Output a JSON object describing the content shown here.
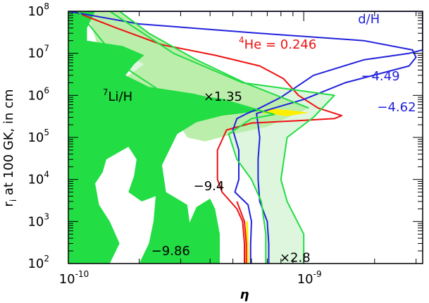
{
  "chart_data": {
    "type": "area",
    "xlabel": "η",
    "ylabel_main": "r",
    "ylabel_sub": "i",
    "ylabel_rest": " at 100 GK, in cm",
    "xscale": "log",
    "yscale": "log",
    "xlim": [
      1e-10,
      3.2e-09
    ],
    "ylim": [
      100.0,
      100000000.0
    ],
    "x_ticks": [
      {
        "value": 1e-10,
        "base": "10",
        "exp": "-10"
      },
      {
        "value": 1e-09,
        "base": "10",
        "exp": "-9"
      }
    ],
    "y_ticks": [
      {
        "value": 100.0,
        "base": "10",
        "exp": "2"
      },
      {
        "value": 1000.0,
        "base": "10",
        "exp": "3"
      },
      {
        "value": 10000.0,
        "base": "10",
        "exp": "4"
      },
      {
        "value": 100000.0,
        "base": "10",
        "exp": "5"
      },
      {
        "value": 1000000.0,
        "base": "10",
        "exp": "6"
      },
      {
        "value": 10000000.0,
        "base": "10",
        "exp": "7"
      },
      {
        "value": 100000000.0,
        "base": "10",
        "exp": "8"
      }
    ],
    "colors": {
      "li_dark": "#22dd44",
      "li_medium": "#bbeeaa",
      "li_light": "#ddf6dd",
      "he": "#ee1111",
      "d": "#2222dd",
      "overlap": "#ffee00"
    },
    "regions": {
      "li_light_x2_8": [
        [
          1.5e-10,
          100000000.0
        ],
        [
          2.8e-10,
          10000000.0
        ],
        [
          5.5e-10,
          2000000.0
        ],
        [
          1.35e-09,
          1000000.0
        ],
        [
          1.1e-09,
          300000.0
        ],
        [
          8.5e-10,
          100000.0
        ],
        [
          8e-10,
          10000.0
        ],
        [
          8.5e-10,
          3000.0
        ],
        [
          1e-09,
          500.0
        ],
        [
          1e-09,
          100.0
        ],
        [
          6.9e-10,
          100.0
        ],
        [
          6.9e-10,
          500.0
        ],
        [
          6.6e-10,
          3000.0
        ],
        [
          6e-10,
          10000.0
        ],
        [
          5.2e-10,
          30000.0
        ],
        [
          4.8e-10,
          120000.0
        ],
        [
          6e-10,
          280000.0
        ],
        [
          7.5e-10,
          350000.0
        ],
        [
          4.5e-10,
          800000.0
        ],
        [
          2.5e-10,
          1200000.0
        ],
        [
          1.7e-10,
          5000000.0
        ],
        [
          1.1e-10,
          100000000.0
        ]
      ],
      "li_medium_x1_35": [
        [
          1.2e-10,
          100000000.0
        ],
        [
          1.65e-10,
          100000000.0
        ],
        [
          2.2e-10,
          30000000.0
        ],
        [
          3.5e-10,
          7000000.0
        ],
        [
          5.6e-10,
          2000000.0
        ],
        [
          1.05e-09,
          500000.0
        ],
        [
          7e-10,
          180000.0
        ],
        [
          5e-10,
          120000.0
        ],
        [
          3.8e-10,
          80000.0
        ],
        [
          3.2e-10,
          100000.0
        ],
        [
          3e-10,
          180000.0
        ],
        [
          2.2e-10,
          300000.0
        ],
        [
          1.75e-10,
          1000000.0
        ],
        [
          1.8e-10,
          3000000.0
        ],
        [
          2.1e-10,
          5500000.0
        ],
        [
          1.8e-10,
          9000000.0
        ],
        [
          1.35e-10,
          12000000.0
        ]
      ],
      "li_dark_main": [
        [
          1e-10,
          100000000.0
        ],
        [
          1.3e-10,
          100000000.0
        ],
        [
          1.2e-10,
          40000000.0
        ],
        [
          1.2e-10,
          20000000.0
        ],
        [
          1.7e-10,
          15000000.0
        ],
        [
          2.1e-10,
          9000000.0
        ],
        [
          1.9e-10,
          5500000.0
        ],
        [
          1.75e-10,
          3000000.0
        ],
        [
          2.2e-10,
          1600000.0
        ],
        [
          3.4e-10,
          1100000.0
        ],
        [
          4.8e-10,
          700000.0
        ],
        [
          6.5e-10,
          420000.0
        ],
        [
          4.5e-10,
          330000.0
        ],
        [
          3.5e-10,
          230000.0
        ],
        [
          2.9e-10,
          120000.0
        ],
        [
          2.5e-10,
          22000.0
        ],
        [
          2.6e-10,
          5000.0
        ],
        [
          3.2e-10,
          2500.0
        ],
        [
          3.3e-10,
          700.0
        ],
        [
          3.6e-10,
          300.0
        ],
        [
          3.7e-10,
          100.0
        ],
        [
          1e-10,
          100.0
        ]
      ],
      "li_dark_bottom_right": [
        [
          2.9e-10,
          100.0
        ],
        [
          4.4e-10,
          100.0
        ],
        [
          4.4e-10,
          500.0
        ],
        [
          4.2e-10,
          2000.0
        ],
        [
          4e-10,
          3500.0
        ],
        [
          3.5e-10,
          2200.0
        ],
        [
          3.2e-10,
          700.0
        ],
        [
          3e-10,
          300.0
        ]
      ],
      "white_hole": [
        [
          1.5e-10,
          100.0
        ],
        [
          1.65e-10,
          300.0
        ],
        [
          1.5e-10,
          1000.0
        ],
        [
          1.35e-10,
          2500.0
        ],
        [
          1.3e-10,
          8000.0
        ],
        [
          1.4e-10,
          15000.0
        ],
        [
          1.45e-10,
          30000.0
        ],
        [
          1.8e-10,
          60000.0
        ],
        [
          1.95e-10,
          30000.0
        ],
        [
          1.9e-10,
          12000.0
        ],
        [
          1.8e-10,
          5000.0
        ],
        [
          2.05e-10,
          3000.0
        ],
        [
          2.35e-10,
          4000.0
        ],
        [
          2.3e-10,
          1000.0
        ],
        [
          2.2e-10,
          300.0
        ],
        [
          2e-10,
          100.0
        ]
      ],
      "yellow_overlap_top": [
        [
          6.3e-10,
          400000.0
        ],
        [
          7.2e-10,
          480000.0
        ],
        [
          8.5e-10,
          450000.0
        ],
        [
          1.05e-09,
          390000.0
        ],
        [
          8.5e-10,
          320000.0
        ]
      ],
      "yellow_overlap_bottom": [
        [
          5.65e-10,
          100.0
        ],
        [
          5.85e-10,
          100.0
        ],
        [
          5.8e-10,
          1000.0
        ],
        [
          5.7e-10,
          1000.0
        ]
      ]
    },
    "series": [
      {
        "key": "he_left",
        "color": "#ee1111",
        "points": [
          [
            1.05e-10,
            100000000.0
          ],
          [
            1.6e-10,
            40000000.0
          ],
          [
            2.5e-10,
            16000000.0
          ],
          [
            4.2e-10,
            9000000.0
          ],
          [
            6.5e-10,
            5000000.0
          ],
          [
            8.2e-10,
            2500000.0
          ],
          [
            9.5e-10,
            1000000.0
          ],
          [
            1.15e-09,
            500000.0
          ],
          [
            1.45e-09,
            330000.0
          ],
          [
            1.35e-09,
            280000.0
          ],
          [
            9.5e-10,
            250000.0
          ],
          [
            6e-10,
            220000.0
          ],
          [
            4.7e-10,
            150000.0
          ],
          [
            4.3e-10,
            50000.0
          ],
          [
            4.3e-10,
            10000.0
          ],
          [
            4.5e-10,
            5000.0
          ],
          [
            5.2e-10,
            2000.0
          ],
          [
            5.5e-10,
            1000.0
          ],
          [
            5.6e-10,
            300.0
          ],
          [
            5.6e-10,
            100.0
          ]
        ]
      },
      {
        "key": "he_right",
        "color": "#ee1111",
        "points": [
          [
            5.7e-10,
            100.0
          ],
          [
            5.7e-10,
            300.0
          ],
          [
            5.6e-10,
            1000.0
          ],
          [
            5.2e-10,
            3000.0
          ]
        ]
      },
      {
        "key": "d_outer",
        "color": "#2222dd",
        "points": [
          [
            1.2e-10,
            100000000.0
          ],
          [
            3.2e-09,
            100000000.0
          ],
          [
            3.2e-09,
            12000000.0
          ],
          [
            2.8e-09,
            10000000.0
          ],
          [
            1.8e-09,
            7000000.0
          ],
          [
            1.1e-09,
            3000000.0
          ],
          [
            8e-10,
            900000.0
          ],
          [
            6.5e-10,
            500000.0
          ],
          [
            5.8e-10,
            380000.0
          ],
          [
            5.2e-10,
            280000.0
          ],
          [
            5e-10,
            150000.0
          ],
          [
            5.3e-10,
            50000.0
          ],
          [
            5.3e-10,
            10000.0
          ],
          [
            5.1e-10,
            5000.0
          ],
          [
            5.8e-10,
            2500.0
          ],
          [
            6e-10,
            1000.0
          ],
          [
            5.95e-10,
            300.0
          ],
          [
            5.95e-10,
            100.0
          ]
        ]
      },
      {
        "key": "d_inner",
        "color": "#2222dd",
        "points": [
          [
            1e-10,
            100000000.0
          ],
          [
            2e-10,
            50000000.0
          ],
          [
            6.5e-10,
            30000000.0
          ],
          [
            1.8e-09,
            20000000.0
          ],
          [
            2.9e-09,
            12000000.0
          ],
          [
            3e-09,
            8000000.0
          ],
          [
            2.8e-09,
            5000000.0
          ],
          [
            1.5e-09,
            2000000.0
          ],
          [
            1e-09,
            800000.0
          ],
          [
            7.5e-10,
            500000.0
          ],
          [
            6.3e-10,
            370000.0
          ],
          [
            6.4e-10,
            200000.0
          ],
          [
            6.5e-10,
            100000.0
          ],
          [
            6.4e-10,
            30000.0
          ],
          [
            6.4e-10,
            10000.0
          ],
          [
            6.5e-10,
            3000.0
          ],
          [
            7e-10,
            1000.0
          ],
          [
            7.1e-10,
            300.0
          ],
          [
            7.1e-10,
            100.0
          ]
        ]
      },
      {
        "key": "li_edge_outer",
        "color": "#22dd44",
        "points": [
          [
            1.5e-10,
            100000000.0
          ],
          [
            2.8e-10,
            10000000.0
          ],
          [
            5.5e-10,
            2000000.0
          ],
          [
            1.35e-09,
            1000000.0
          ],
          [
            1.1e-09,
            300000.0
          ],
          [
            8.5e-10,
            100000.0
          ],
          [
            8e-10,
            10000.0
          ],
          [
            8.5e-10,
            3000.0
          ],
          [
            1e-09,
            500.0
          ],
          [
            1e-09,
            100.0
          ]
        ]
      },
      {
        "key": "li_edge_inner",
        "color": "#22dd44",
        "points": [
          [
            1.1e-10,
            100000000.0
          ],
          [
            1.7e-10,
            5000000.0
          ],
          [
            2.5e-10,
            1200000.0
          ],
          [
            4.5e-10,
            800000.0
          ],
          [
            7.5e-10,
            350000.0
          ],
          [
            6e-10,
            280000.0
          ],
          [
            4.8e-10,
            120000.0
          ],
          [
            5.2e-10,
            30000.0
          ],
          [
            6e-10,
            10000.0
          ],
          [
            6.6e-10,
            3000.0
          ],
          [
            6.9e-10,
            500.0
          ],
          [
            6.9e-10,
            100.0
          ]
        ]
      },
      {
        "key": "li_edge_mid",
        "color": "#22dd44",
        "points": [
          [
            1.65e-10,
            100000000.0
          ],
          [
            2.2e-10,
            30000000.0
          ],
          [
            3.5e-10,
            7000000.0
          ],
          [
            5.6e-10,
            2000000.0
          ],
          [
            1.05e-09,
            500000.0
          ]
        ]
      }
    ],
    "annotations": [
      {
        "key": "d_label",
        "text": "d/H",
        "color": "#2222dd",
        "x": 1.7e-09,
        "y": 52000000.0
      },
      {
        "key": "he_label",
        "pre": "4",
        "text": "He = 0.246",
        "color": "#ee1111",
        "x": 5.3e-10,
        "y": 13000000.0
      },
      {
        "key": "d_upper",
        "text": "−4.49",
        "color": "#2222dd",
        "x": 1.75e-09,
        "y": 2300000.0
      },
      {
        "key": "d_lower",
        "text": "−4.62",
        "color": "#2222dd",
        "x": 2.05e-09,
        "y": 420000.0
      },
      {
        "key": "li_label",
        "pre": "7",
        "text": "Li/H",
        "color": "#000000",
        "x": 1.4e-10,
        "y": 750000.0
      },
      {
        "key": "li_upper",
        "text": "×1.35",
        "color": "#000000",
        "x": 3.75e-10,
        "y": 750000.0
      },
      {
        "key": "li_mid",
        "text": "−9.4",
        "color": "#000000",
        "x": 3.4e-10,
        "y": 5500.0
      },
      {
        "key": "li_lower",
        "text": "−9.86",
        "color": "#000000",
        "x": 2.25e-10,
        "y": 160.0
      },
      {
        "key": "li_x2_8",
        "text": "×2.8",
        "color": "#000000",
        "x": 7.9e-10,
        "y": 110.0
      }
    ]
  }
}
